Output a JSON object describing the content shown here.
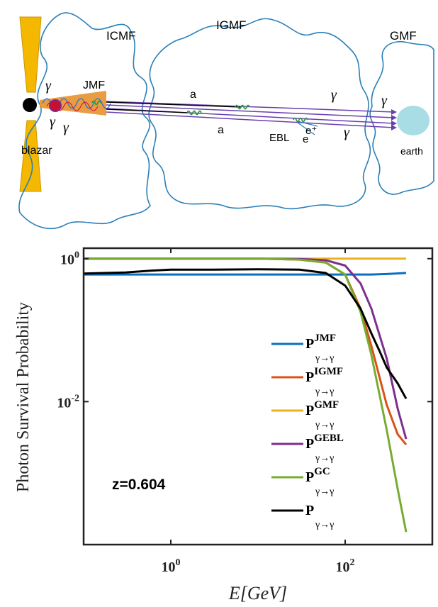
{
  "diagram": {
    "regions": {
      "icmf": "ICMF",
      "igmf": "IGMF",
      "gmf": "GMF",
      "jmf": "JMF"
    },
    "source_label": "blazar",
    "target_label": "earth",
    "particle_labels": {
      "photon": "γ",
      "axion": "a",
      "ebl": "EBL",
      "positron": "e⁺",
      "electron": "e"
    },
    "colors": {
      "jet": "#f5b800",
      "jet_cone": "#e8912e",
      "field_lines": "#2a7fb8",
      "rays": "#6a3fb0",
      "earth": "#a8dde6",
      "conversion": "#2e9a3a",
      "source_core": "#c8102e"
    }
  },
  "chart_data": {
    "type": "line",
    "ylabel": "Photon Survival Probability",
    "xlabel": "E[GeV]",
    "xscale": "log",
    "yscale": "log",
    "xlim": [
      0.1,
      1000
    ],
    "ylim": [
      0.0001,
      1.4
    ],
    "x_ticks": [
      {
        "value": 1,
        "base": "10",
        "exp": "0"
      },
      {
        "value": 100,
        "base": "10",
        "exp": "2"
      }
    ],
    "y_ticks": [
      {
        "value": 1,
        "base": "10",
        "exp": "0"
      },
      {
        "value": 0.01,
        "base": "10",
        "exp": "-2"
      }
    ],
    "annotation": "z=0.604",
    "legend_position": "right",
    "series": [
      {
        "key": "JMF",
        "label_main": "P",
        "label_sup": "JMF",
        "label_sub": "γ→γ",
        "color": "#0a6fbf",
        "x": [
          0.1,
          1,
          10,
          100,
          200,
          300,
          500
        ],
        "y": [
          0.6,
          0.6,
          0.6,
          0.6,
          0.6,
          0.61,
          0.63
        ]
      },
      {
        "key": "IGMF",
        "label_main": "P",
        "label_sup": "IGMF",
        "label_sub": "γ→γ",
        "color": "#d95319",
        "x": [
          0.1,
          1,
          10,
          30,
          60,
          100,
          150,
          200,
          300,
          400,
          500
        ],
        "y": [
          1.0,
          1.0,
          1.0,
          0.97,
          0.88,
          0.6,
          0.2,
          0.06,
          0.009,
          0.0035,
          0.0025
        ]
      },
      {
        "key": "GMF",
        "label_main": "P",
        "label_sup": "GMF",
        "label_sub": "γ→γ",
        "color": "#edb120",
        "x": [
          0.1,
          1,
          10,
          100,
          500
        ],
        "y": [
          1.0,
          1.0,
          1.0,
          1.0,
          1.0
        ]
      },
      {
        "key": "GEBL",
        "label_main": "P",
        "label_sup": "GEBL",
        "label_sub": "γ→γ",
        "color": "#7e2f8e",
        "x": [
          0.1,
          1,
          10,
          30,
          60,
          100,
          150,
          200,
          300,
          400,
          500
        ],
        "y": [
          1.0,
          1.0,
          1.0,
          0.99,
          0.95,
          0.8,
          0.45,
          0.2,
          0.04,
          0.008,
          0.003
        ]
      },
      {
        "key": "GC",
        "label_main": "P",
        "label_sup": "GC",
        "label_sub": "γ→γ",
        "color": "#77ac30",
        "x": [
          0.1,
          1,
          10,
          30,
          60,
          100,
          150,
          200,
          300,
          400,
          500
        ],
        "y": [
          1.0,
          1.0,
          1.0,
          0.97,
          0.88,
          0.6,
          0.18,
          0.045,
          0.004,
          0.0006,
          0.00015
        ]
      },
      {
        "key": "TOTAL",
        "label_main": "P",
        "label_sup": "",
        "label_sub": "γ→γ",
        "color": "#000000",
        "x": [
          0.1,
          0.3,
          0.6,
          1,
          3,
          10,
          30,
          60,
          100,
          150,
          200,
          250,
          300,
          400,
          500
        ],
        "y": [
          0.62,
          0.64,
          0.68,
          0.7,
          0.7,
          0.71,
          0.7,
          0.63,
          0.42,
          0.2,
          0.09,
          0.05,
          0.03,
          0.018,
          0.011
        ]
      }
    ]
  }
}
